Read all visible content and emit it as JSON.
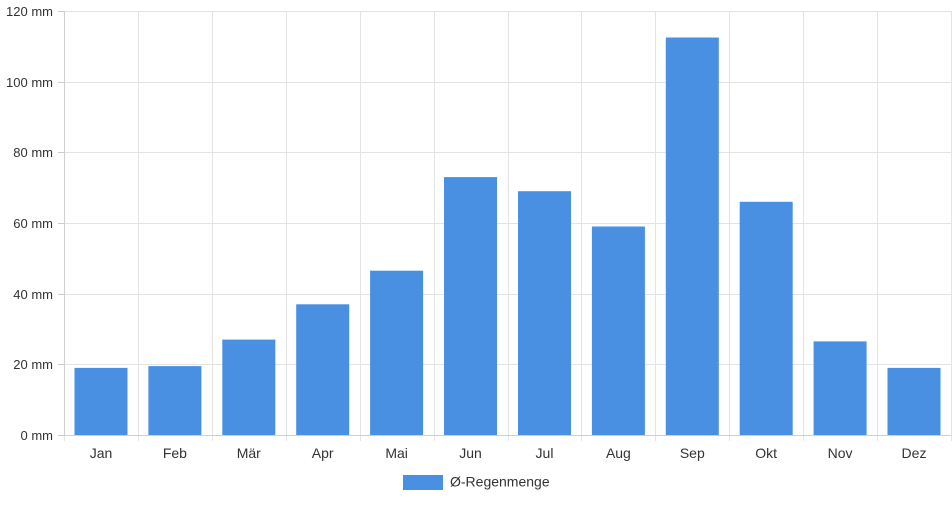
{
  "chart_data": {
    "type": "bar",
    "categories": [
      "Jan",
      "Feb",
      "Mär",
      "Apr",
      "Mai",
      "Jun",
      "Jul",
      "Aug",
      "Sep",
      "Okt",
      "Nov",
      "Dez"
    ],
    "series": [
      {
        "name": "Ø-Regenmenge",
        "values": [
          19,
          19.5,
          27,
          37,
          46.5,
          73,
          69,
          59,
          112.5,
          66,
          26.5,
          19
        ],
        "color": "#4a90e2"
      }
    ],
    "ylim": [
      0,
      120
    ],
    "yticks": [
      0,
      20,
      40,
      60,
      80,
      100,
      120
    ],
    "ytick_labels": [
      "0 mm",
      "20 mm",
      "40 mm",
      "60 mm",
      "80 mm",
      "100 mm",
      "120 mm"
    ],
    "grid": true,
    "legend": "bottom-center"
  }
}
